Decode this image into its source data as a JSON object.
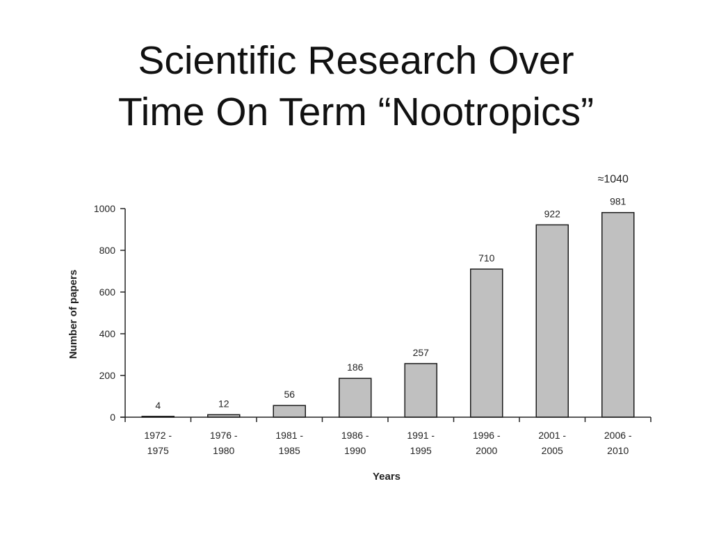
{
  "slide": {
    "title_line1": "Scientific Research Over",
    "title_line2": "Time On Term “Nootropics”"
  },
  "chart_data": {
    "type": "bar",
    "categories": [
      [
        "1972 -",
        "1975"
      ],
      [
        "1976 -",
        "1980"
      ],
      [
        "1981 -",
        "1985"
      ],
      [
        "1986 -",
        "1990"
      ],
      [
        "1991 -",
        "1995"
      ],
      [
        "1996 -",
        "2000"
      ],
      [
        "2001 -",
        "2005"
      ],
      [
        "2006 -",
        "2010"
      ]
    ],
    "values": [
      4,
      12,
      56,
      186,
      257,
      710,
      922,
      981
    ],
    "data_labels": [
      "4",
      "12",
      "56",
      "186",
      "257",
      "710",
      "922",
      "981"
    ],
    "extra_annotation": "≈1040",
    "xlabel": "Years",
    "ylabel": "Number of papers",
    "ylim": [
      0,
      1000
    ],
    "yticks": [
      0,
      200,
      400,
      600,
      800,
      1000
    ],
    "grid": false,
    "legend": "none",
    "colors": {
      "bar_fill": "#c0c0c0",
      "bar_stroke": "#1a1a1a",
      "axis": "#222222"
    }
  }
}
